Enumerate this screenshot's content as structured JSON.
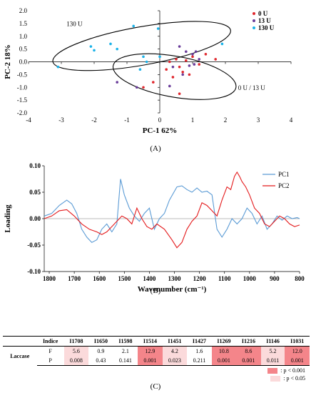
{
  "chart_data": [
    {
      "type": "scatter",
      "panel_label": "(A)",
      "xlabel": "PC-1 62%",
      "ylabel": "PC-2 18%",
      "xlim": [
        -4,
        4
      ],
      "ylim": [
        -2.0,
        2.0
      ],
      "xticks": [
        "-4",
        "-3",
        "-2",
        "-1",
        "0",
        "1",
        "2",
        "3",
        "4"
      ],
      "yticks": [
        "2.0",
        "1.5",
        "1.0",
        "0.5",
        "0.0",
        "-0.5",
        "-1.0",
        "-1.5",
        "-2.0"
      ],
      "legend_position": "top-right",
      "series": [
        {
          "name": "0 U",
          "color": "#e0282e",
          "points": [
            [
              0.2,
              -0.3
            ],
            [
              0.3,
              0.0
            ],
            [
              0.4,
              -0.6
            ],
            [
              0.5,
              0.1
            ],
            [
              0.6,
              -0.2
            ],
            [
              0.7,
              -0.4
            ],
            [
              0.8,
              0.05
            ],
            [
              0.9,
              -0.5
            ],
            [
              1.0,
              0.2
            ],
            [
              1.2,
              -0.1
            ],
            [
              1.4,
              0.3
            ],
            [
              1.7,
              0.1
            ],
            [
              -0.5,
              -1.0
            ],
            [
              -0.2,
              -0.8
            ],
            [
              0.6,
              -1.25
            ]
          ]
        },
        {
          "name": "13 U",
          "color": "#6a3d9a",
          "points": [
            [
              0.6,
              0.6
            ],
            [
              0.8,
              0.4
            ],
            [
              1.0,
              0.3
            ],
            [
              1.1,
              0.4
            ],
            [
              1.2,
              0.1
            ],
            [
              0.9,
              -0.15
            ],
            [
              1.05,
              -0.1
            ],
            [
              0.7,
              -0.5
            ],
            [
              0.4,
              -0.2
            ],
            [
              -0.7,
              -1.0
            ],
            [
              -1.3,
              -0.8
            ],
            [
              0.3,
              -0.95
            ]
          ]
        },
        {
          "name": "130 U",
          "color": "#1ab2e8",
          "points": [
            [
              -3.1,
              -0.2
            ],
            [
              -2.1,
              0.6
            ],
            [
              -2.0,
              0.45
            ],
            [
              -1.5,
              0.7
            ],
            [
              -1.3,
              0.5
            ],
            [
              -0.8,
              1.4
            ],
            [
              -0.5,
              0.2
            ],
            [
              -0.4,
              0.0
            ],
            [
              -0.05,
              1.3
            ],
            [
              0.0,
              0.2
            ],
            [
              -0.6,
              -0.3
            ],
            [
              1.9,
              0.7
            ]
          ]
        }
      ],
      "annotations": [
        {
          "text": "130 U",
          "x": -2.6,
          "y": 1.4
        },
        {
          "text": "0 U / 13 U",
          "x": 2.8,
          "y": -1.1
        }
      ],
      "ellipses": [
        {
          "cx": -0.55,
          "cy": 0.62,
          "rx": 2.75,
          "ry": 0.75,
          "angle_deg": -10
        },
        {
          "cx": 0.45,
          "cy": -0.58,
          "rx": 1.9,
          "ry": 0.8,
          "angle_deg": 10
        }
      ]
    },
    {
      "type": "line",
      "panel_label": "(B)",
      "xlabel": "Wavenumber (cm⁻¹)",
      "ylabel": "Loading",
      "xlim": [
        1820,
        800
      ],
      "ylim": [
        -0.1,
        0.1
      ],
      "xticks": [
        "1800",
        "1700",
        "1600",
        "1500",
        "1400",
        "1300",
        "1200",
        "1100",
        "1000",
        "900",
        "800"
      ],
      "yticks": [
        "0.10",
        "0.05",
        "0.00",
        "-0.05",
        "-0.10"
      ],
      "legend_position": "top-right",
      "series": [
        {
          "name": "PC1",
          "color": "#5b9bd5",
          "points": [
            [
              1820,
              0.005
            ],
            [
              1790,
              0.01
            ],
            [
              1760,
              0.025
            ],
            [
              1730,
              0.035
            ],
            [
              1710,
              0.028
            ],
            [
              1690,
              0.01
            ],
            [
              1670,
              -0.02
            ],
            [
              1650,
              -0.035
            ],
            [
              1630,
              -0.045
            ],
            [
              1610,
              -0.04
            ],
            [
              1590,
              -0.02
            ],
            [
              1570,
              -0.01
            ],
            [
              1550,
              -0.025
            ],
            [
              1530,
              -0.01
            ],
            [
              1515,
              0.075
            ],
            [
              1500,
              0.045
            ],
            [
              1480,
              0.02
            ],
            [
              1460,
              0.005
            ],
            [
              1440,
              -0.005
            ],
            [
              1420,
              0.01
            ],
            [
              1400,
              0.02
            ],
            [
              1380,
              -0.02
            ],
            [
              1360,
              0.0
            ],
            [
              1340,
              0.01
            ],
            [
              1320,
              0.035
            ],
            [
              1290,
              0.06
            ],
            [
              1270,
              0.062
            ],
            [
              1250,
              0.055
            ],
            [
              1230,
              0.05
            ],
            [
              1210,
              0.058
            ],
            [
              1190,
              0.05
            ],
            [
              1170,
              0.052
            ],
            [
              1150,
              0.045
            ],
            [
              1130,
              -0.02
            ],
            [
              1110,
              -0.035
            ],
            [
              1090,
              -0.02
            ],
            [
              1070,
              0.0
            ],
            [
              1050,
              -0.01
            ],
            [
              1030,
              0.0
            ],
            [
              1010,
              0.02
            ],
            [
              990,
              0.01
            ],
            [
              970,
              -0.01
            ],
            [
              950,
              0.005
            ],
            [
              930,
              -0.02
            ],
            [
              910,
              -0.01
            ],
            [
              890,
              0.005
            ],
            [
              870,
              -0.003
            ],
            [
              850,
              0.005
            ],
            [
              830,
              0.0
            ],
            [
              810,
              0.002
            ],
            [
              800,
              0.0
            ]
          ]
        },
        {
          "name": "PC2",
          "color": "#e41a1c",
          "points": [
            [
              1820,
              0.0
            ],
            [
              1790,
              0.005
            ],
            [
              1760,
              0.015
            ],
            [
              1730,
              0.017
            ],
            [
              1700,
              0.005
            ],
            [
              1670,
              -0.01
            ],
            [
              1640,
              -0.02
            ],
            [
              1610,
              -0.025
            ],
            [
              1590,
              -0.03
            ],
            [
              1570,
              -0.025
            ],
            [
              1550,
              -0.015
            ],
            [
              1530,
              -0.005
            ],
            [
              1510,
              0.005
            ],
            [
              1490,
              0.0
            ],
            [
              1470,
              -0.01
            ],
            [
              1450,
              0.02
            ],
            [
              1430,
              0.0
            ],
            [
              1410,
              -0.015
            ],
            [
              1390,
              -0.02
            ],
            [
              1370,
              -0.01
            ],
            [
              1340,
              -0.02
            ],
            [
              1310,
              -0.04
            ],
            [
              1290,
              -0.055
            ],
            [
              1270,
              -0.045
            ],
            [
              1250,
              -0.02
            ],
            [
              1230,
              -0.005
            ],
            [
              1210,
              0.005
            ],
            [
              1190,
              0.03
            ],
            [
              1170,
              0.025
            ],
            [
              1150,
              0.015
            ],
            [
              1130,
              0.005
            ],
            [
              1110,
              0.035
            ],
            [
              1090,
              0.06
            ],
            [
              1075,
              0.055
            ],
            [
              1060,
              0.08
            ],
            [
              1050,
              0.088
            ],
            [
              1040,
              0.08
            ],
            [
              1030,
              0.07
            ],
            [
              1015,
              0.06
            ],
            [
              1000,
              0.045
            ],
            [
              980,
              0.02
            ],
            [
              960,
              0.01
            ],
            [
              940,
              -0.01
            ],
            [
              920,
              -0.015
            ],
            [
              900,
              -0.005
            ],
            [
              880,
              0.005
            ],
            [
              860,
              0.0
            ],
            [
              840,
              -0.01
            ],
            [
              820,
              -0.015
            ],
            [
              800,
              -0.012
            ]
          ]
        }
      ]
    },
    {
      "type": "table",
      "panel_label": "(C)",
      "corner_header": "Indice",
      "columns": [
        "I1708",
        "I1650",
        "I1598",
        "I1514",
        "I1451",
        "I1427",
        "I1269",
        "I1216",
        "I1146",
        "I1031"
      ],
      "group_label": "Laccase",
      "rows": [
        {
          "label": "F",
          "values": [
            "5.6",
            "0.9",
            "2.1",
            "12.9",
            "4.2",
            "1.6",
            "10.8",
            "8.6",
            "5.2",
            "12.0"
          ]
        },
        {
          "label": "P",
          "values": [
            "0.008",
            "0.43",
            "0.141",
            "0.001",
            "0.023",
            "0.211",
            "0.001",
            "0.001",
            "0.011",
            "0.001"
          ]
        }
      ],
      "significance": [
        "light",
        "none",
        "none",
        "strong",
        "light",
        "none",
        "strong",
        "strong",
        "light",
        "strong"
      ],
      "legend": [
        {
          "label": ": p < 0.001",
          "color": "#f4858a"
        },
        {
          "label": ": p < 0.05",
          "color": "#fbdadb"
        }
      ]
    }
  ]
}
